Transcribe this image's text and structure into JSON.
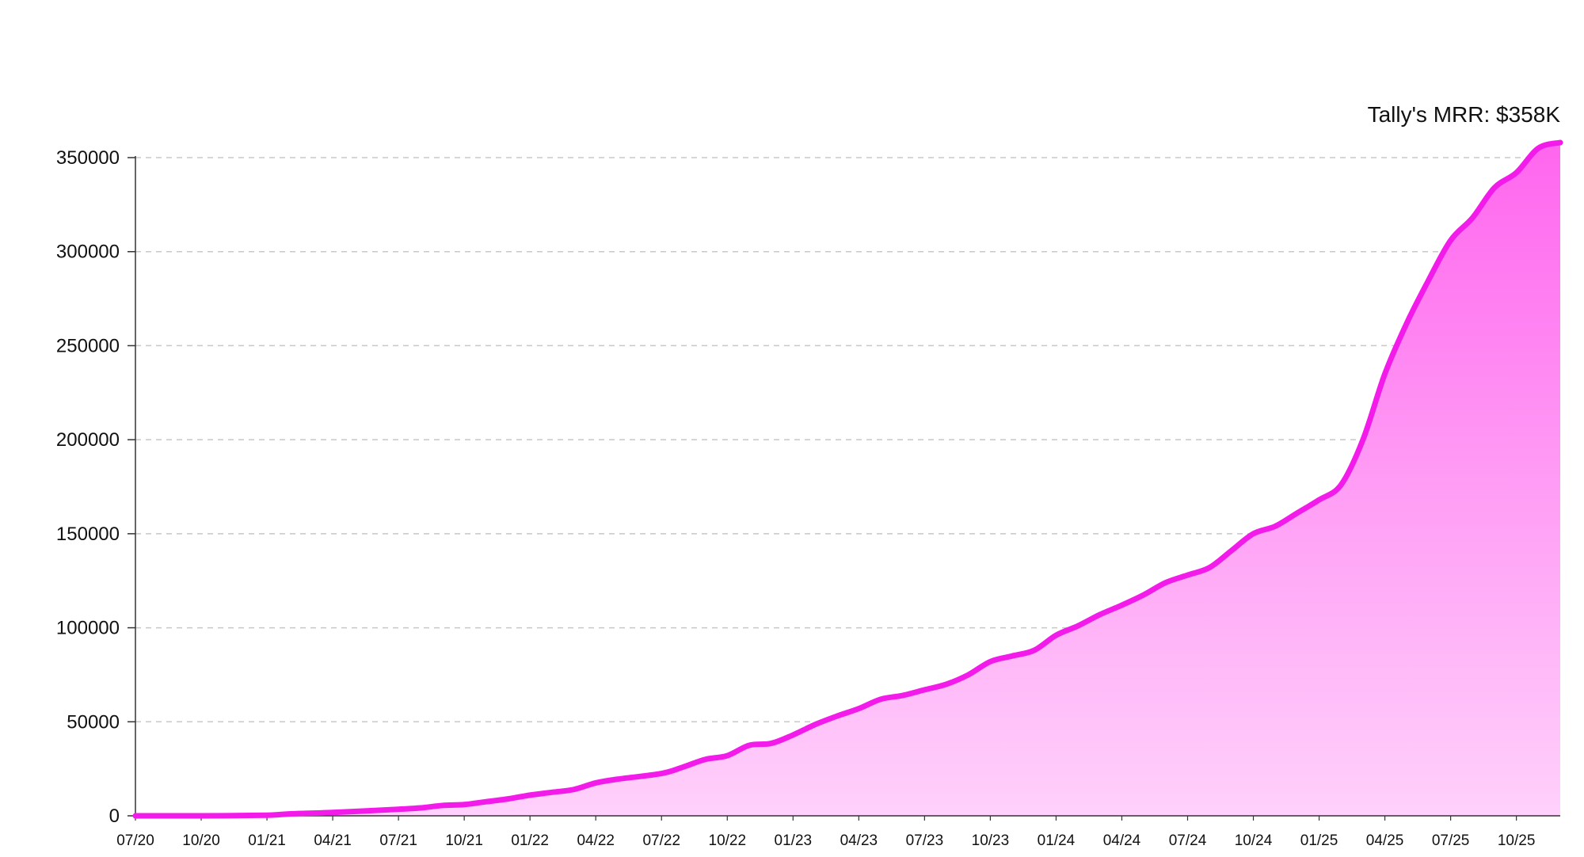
{
  "chart_data": {
    "type": "area",
    "title": "",
    "xlabel": "",
    "ylabel": "",
    "annotation": "Tally's MRR: $358K",
    "colors": {
      "line": "#f31bea",
      "fill_top": "#ff66ee",
      "fill_bottom": "#ffd1fb",
      "grid": "#c8c8c8",
      "axis": "#333333"
    },
    "grid": true,
    "ylim": [
      0,
      358000
    ],
    "y_ticks": [
      0,
      50000,
      100000,
      150000,
      200000,
      250000,
      300000,
      350000
    ],
    "x_ticks": [
      {
        "t": 0,
        "label": "07/20"
      },
      {
        "t": 3,
        "label": "10/20"
      },
      {
        "t": 6,
        "label": "01/21"
      },
      {
        "t": 9,
        "label": "04/21"
      },
      {
        "t": 12,
        "label": "07/21"
      },
      {
        "t": 15,
        "label": "10/21"
      },
      {
        "t": 18,
        "label": "01/22"
      },
      {
        "t": 21,
        "label": "04/22"
      },
      {
        "t": 24,
        "label": "07/22"
      },
      {
        "t": 27,
        "label": "10/22"
      },
      {
        "t": 30,
        "label": "01/23"
      },
      {
        "t": 33,
        "label": "04/23"
      },
      {
        "t": 36,
        "label": "07/23"
      },
      {
        "t": 39,
        "label": "10/23"
      },
      {
        "t": 42,
        "label": "01/24"
      },
      {
        "t": 45,
        "label": "04/24"
      },
      {
        "t": 48,
        "label": "07/24"
      },
      {
        "t": 51,
        "label": "10/24"
      },
      {
        "t": 54,
        "label": "01/25"
      },
      {
        "t": 57,
        "label": "04/25"
      },
      {
        "t": 60,
        "label": "07/25"
      },
      {
        "t": 63,
        "label": "10/25"
      }
    ],
    "x_max": 65,
    "series": [
      {
        "values": [
          [
            0,
            0
          ],
          [
            3,
            0
          ],
          [
            6,
            300
          ],
          [
            7,
            1000
          ],
          [
            9,
            1800
          ],
          [
            12,
            3500
          ],
          [
            13,
            4200
          ],
          [
            14,
            5500
          ],
          [
            15,
            6000
          ],
          [
            16,
            7500
          ],
          [
            17,
            9000
          ],
          [
            18,
            11000
          ],
          [
            19,
            12500
          ],
          [
            20,
            14000
          ],
          [
            21,
            17500
          ],
          [
            22,
            19500
          ],
          [
            24,
            22500
          ],
          [
            25,
            26000
          ],
          [
            26,
            30000
          ],
          [
            27,
            32000
          ],
          [
            28,
            37500
          ],
          [
            29,
            38500
          ],
          [
            30,
            43000
          ],
          [
            31,
            48500
          ],
          [
            32,
            53000
          ],
          [
            33,
            57000
          ],
          [
            34,
            62000
          ],
          [
            35,
            64000
          ],
          [
            36,
            67000
          ],
          [
            37,
            70000
          ],
          [
            38,
            75000
          ],
          [
            39,
            82000
          ],
          [
            40,
            85000
          ],
          [
            41,
            88000
          ],
          [
            42,
            96000
          ],
          [
            43,
            101000
          ],
          [
            44,
            107000
          ],
          [
            45,
            112000
          ],
          [
            46,
            117500
          ],
          [
            47,
            124000
          ],
          [
            48,
            128000
          ],
          [
            49,
            132000
          ],
          [
            50,
            141000
          ],
          [
            51,
            150000
          ],
          [
            52,
            154000
          ],
          [
            53,
            161000
          ],
          [
            54,
            168000
          ],
          [
            55,
            176000
          ],
          [
            56,
            200000
          ],
          [
            57,
            235000
          ],
          [
            58,
            262000
          ],
          [
            59,
            285000
          ],
          [
            60,
            306000
          ],
          [
            61,
            318000
          ],
          [
            62,
            334000
          ],
          [
            63,
            342000
          ],
          [
            64,
            355000
          ],
          [
            65,
            358000
          ]
        ]
      }
    ]
  }
}
